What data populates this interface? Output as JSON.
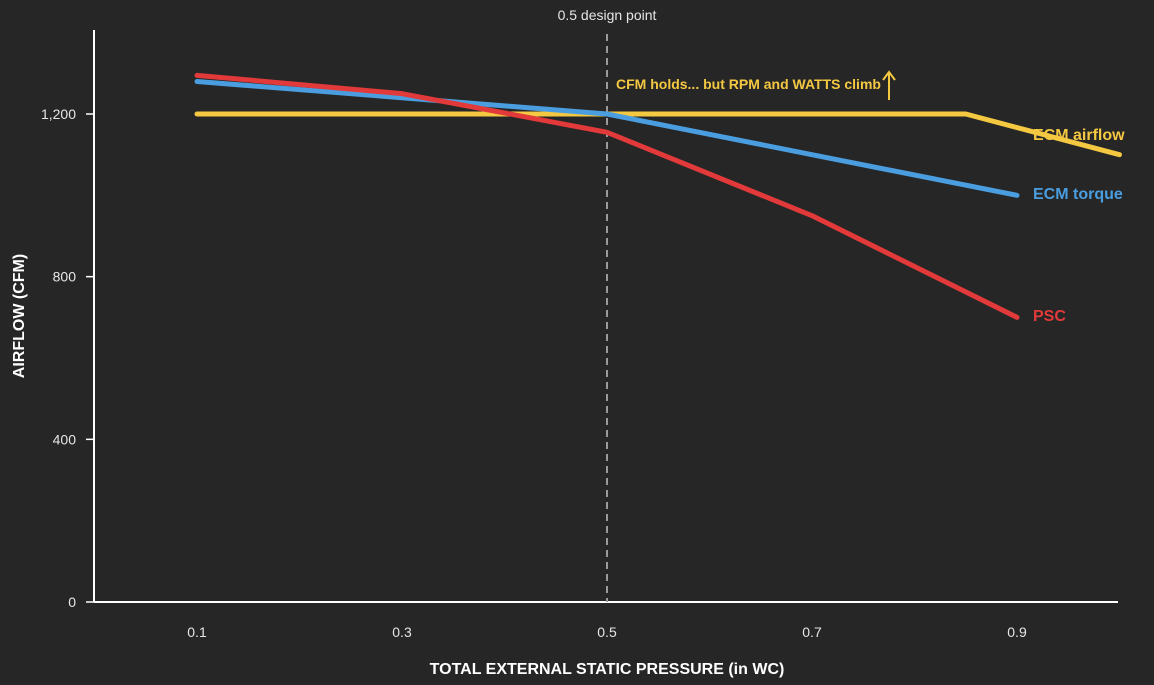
{
  "chart_data": {
    "type": "line",
    "xlabel": "TOTAL EXTERNAL STATIC PRESSURE (in WC)",
    "ylabel": "AIRFLOW (CFM)",
    "x_ticks": [
      {
        "value": 0.1,
        "label": "0.1"
      },
      {
        "value": 0.3,
        "label": "0.3"
      },
      {
        "value": 0.5,
        "label": "0.5"
      },
      {
        "value": 0.7,
        "label": "0.7"
      },
      {
        "value": 0.9,
        "label": "0.9"
      }
    ],
    "y_ticks": [
      {
        "value": 0,
        "label": "0"
      },
      {
        "value": 400,
        "label": "400"
      },
      {
        "value": 800,
        "label": "800"
      },
      {
        "value": 1200,
        "label": "1,200"
      }
    ],
    "xlim": [
      0,
      1.0
    ],
    "ylim": [
      0,
      1400
    ],
    "grid": false,
    "series": [
      {
        "name": "ECM airflow",
        "color": "#f5c842",
        "x": [
          0.1,
          0.5,
          0.85,
          1.0
        ],
        "y": [
          1200,
          1200,
          1200,
          1100
        ]
      },
      {
        "name": "ECM torque",
        "color": "#4a9ee0",
        "x": [
          0.1,
          0.5,
          0.7,
          0.9
        ],
        "y": [
          1280,
          1200,
          1100,
          1000
        ]
      },
      {
        "name": "PSC",
        "color": "#e23a3a",
        "x": [
          0.1,
          0.3,
          0.5,
          0.7,
          0.9
        ],
        "y": [
          1295,
          1250,
          1155,
          950,
          700
        ]
      }
    ],
    "annotations": {
      "design_point": {
        "x": 0.5,
        "label": "0.5 design point"
      },
      "note": {
        "text": "CFM holds... but RPM and WATTS climb",
        "color": "#f5c842"
      }
    }
  }
}
